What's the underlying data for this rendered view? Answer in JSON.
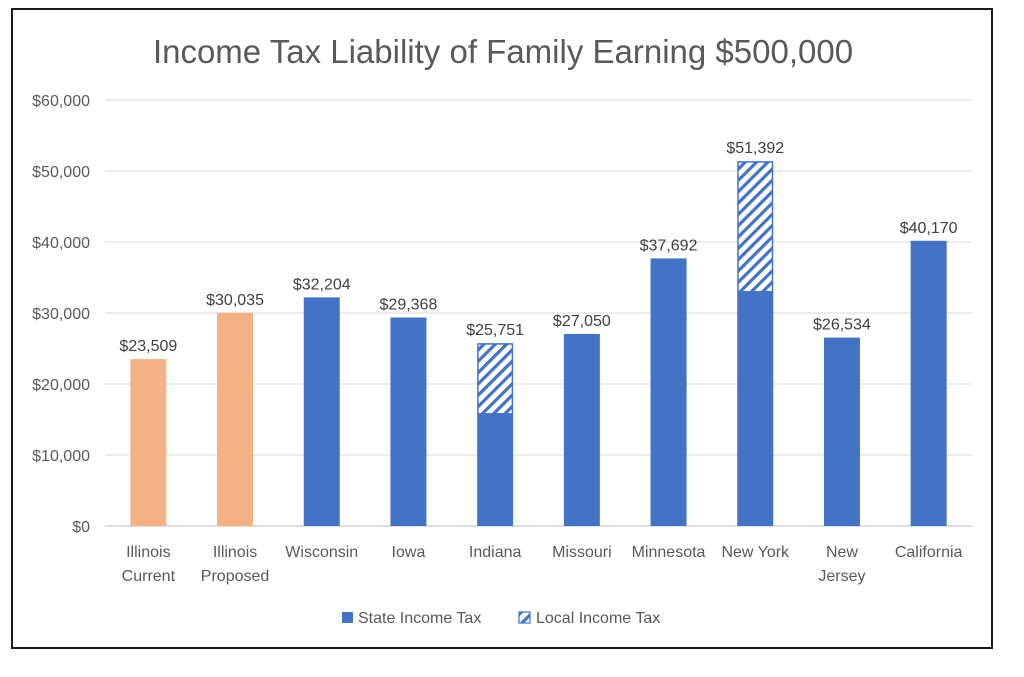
{
  "chart_data": {
    "type": "bar",
    "stacked": true,
    "title": "Income Tax Liability of Family Earning $500,000",
    "categories": [
      [
        "Illinois",
        "Current"
      ],
      [
        "Illinois",
        "Proposed"
      ],
      [
        "Wisconsin"
      ],
      [
        "Iowa"
      ],
      [
        "Indiana"
      ],
      [
        "Missouri"
      ],
      [
        "Minnesota"
      ],
      [
        "New York"
      ],
      [
        "New",
        "Jersey"
      ],
      [
        "California"
      ]
    ],
    "series": [
      {
        "name": "State Income Tax",
        "values": [
          23509,
          30035,
          32204,
          29368,
          15800,
          27050,
          37692,
          33000,
          26534,
          40170
        ]
      },
      {
        "name": "Local Income Tax",
        "values": [
          0,
          0,
          0,
          0,
          9951,
          0,
          0,
          18392,
          0,
          0
        ]
      }
    ],
    "totals": [
      23509,
      30035,
      32204,
      29368,
      25751,
      27050,
      37692,
      51392,
      26534,
      40170
    ],
    "data_labels": [
      "$23,509",
      "$30,035",
      "$32,204",
      "$29,368",
      "$25,751",
      "$27,050",
      "$37,692",
      "$51,392",
      "$26,534",
      "$40,170"
    ],
    "ylim": [
      0,
      60000
    ],
    "yticks": [
      0,
      10000,
      20000,
      30000,
      40000,
      50000,
      60000
    ],
    "ytick_labels": [
      "$0",
      "$10,000",
      "$20,000",
      "$30,000",
      "$40,000",
      "$50,000",
      "$60,000"
    ],
    "highlight_color": "#F4B183",
    "highlight_indices": [
      0,
      1
    ],
    "state_color": "#4472C4",
    "local_pattern": "diagonal-hatch",
    "grid": true,
    "legend_position": "bottom"
  }
}
